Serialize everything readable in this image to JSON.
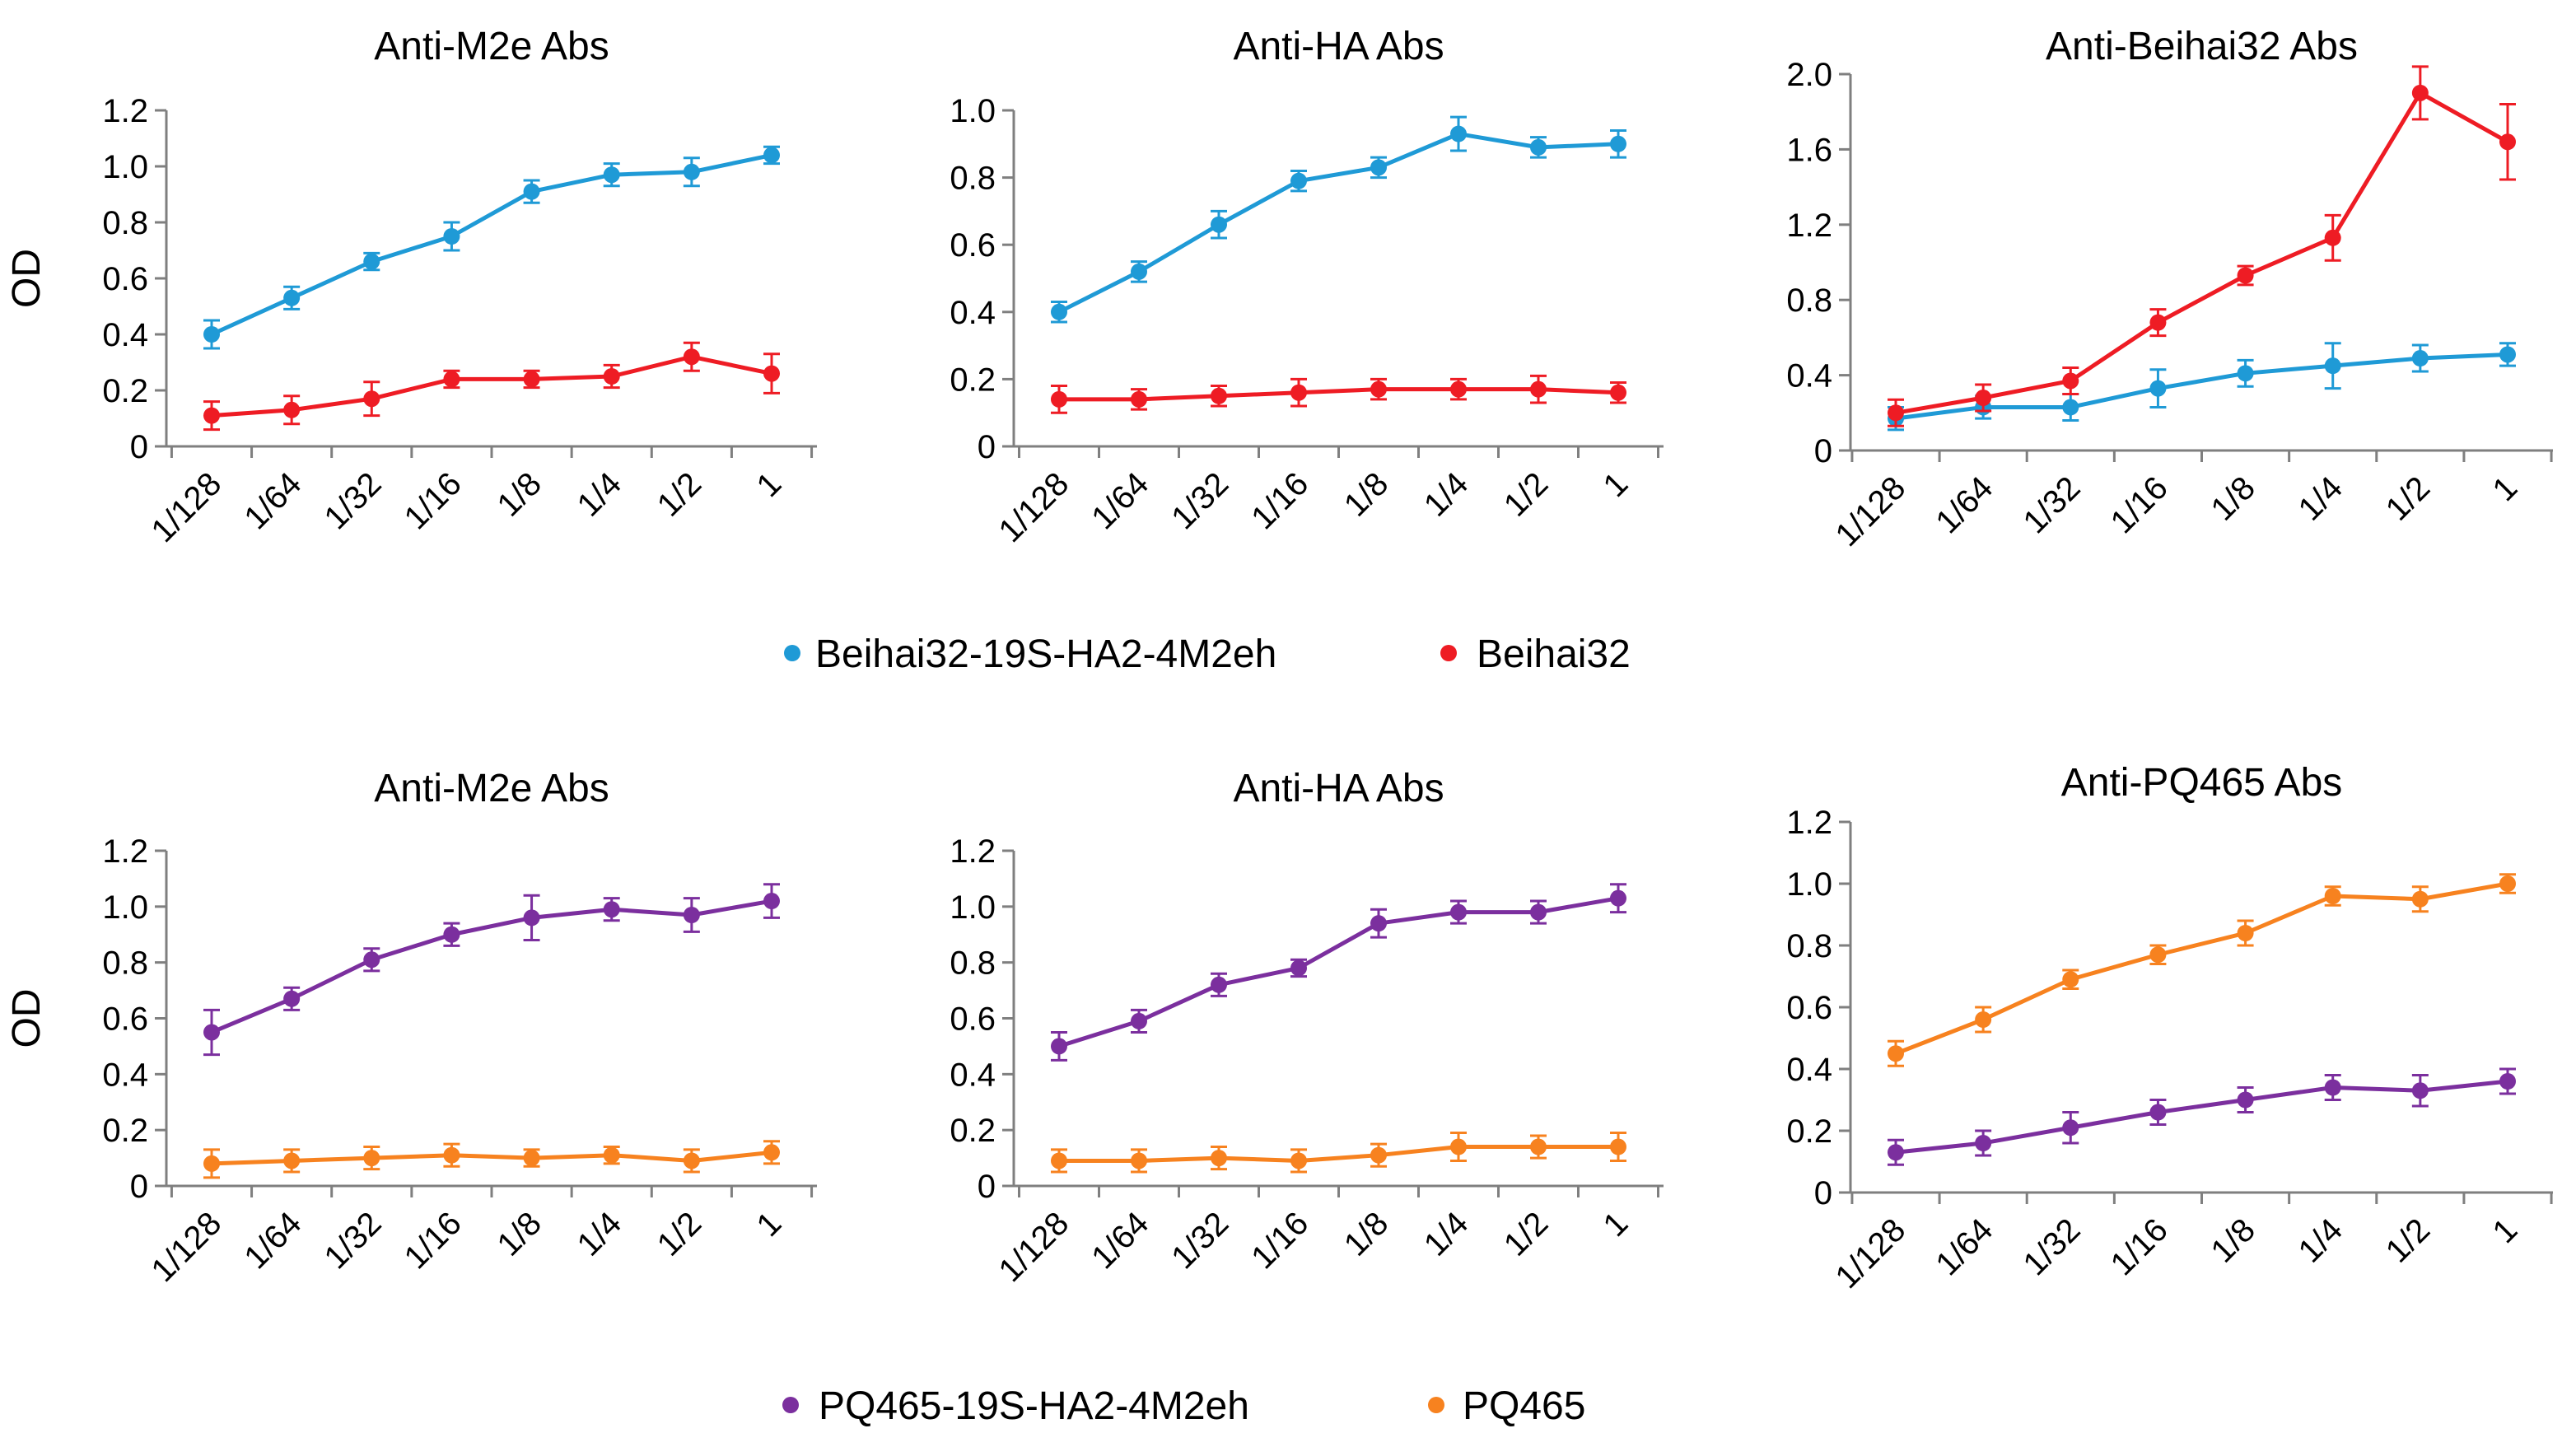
{
  "legends": [
    {
      "items": [
        {
          "name": "Beihai32-19S-HA2-4M2eh",
          "color": "#1f9ad6"
        },
        {
          "name": "Beihai32",
          "color": "#ee1c24"
        }
      ]
    },
    {
      "items": [
        {
          "name": "PQ465-19S-HA2-4M2eh",
          "color": "#7b2f9e"
        },
        {
          "name": "PQ465",
          "color": "#f7821f"
        }
      ]
    }
  ],
  "chart_data": [
    {
      "type": "line",
      "title": "Anti-M2e Abs",
      "xlabel": "",
      "ylabel": "OD",
      "categories": [
        "1/128",
        "1/64",
        "1/32",
        "1/16",
        "1/8",
        "1/4",
        "1/2",
        "1"
      ],
      "ylim": [
        0,
        1.2
      ],
      "yticks": [
        0,
        0.2,
        0.4,
        0.6,
        0.8,
        1.0,
        1.2
      ],
      "ytick_labels": [
        "0",
        "0.2",
        "0.4",
        "0.6",
        "0.8",
        "1.0",
        "1.2"
      ],
      "series": [
        {
          "name": "Beihai32-19S-HA2-4M2eh",
          "color": "#1f9ad6",
          "values": [
            0.4,
            0.53,
            0.66,
            0.75,
            0.91,
            0.97,
            0.98,
            1.04
          ],
          "errors": [
            0.05,
            0.04,
            0.03,
            0.05,
            0.04,
            0.04,
            0.05,
            0.03
          ]
        },
        {
          "name": "Beihai32",
          "color": "#ee1c24",
          "values": [
            0.11,
            0.13,
            0.17,
            0.24,
            0.24,
            0.25,
            0.32,
            0.26
          ],
          "errors": [
            0.05,
            0.05,
            0.06,
            0.03,
            0.03,
            0.04,
            0.05,
            0.07
          ]
        }
      ]
    },
    {
      "type": "line",
      "title": "Anti-HA Abs",
      "xlabel": "",
      "ylabel": "",
      "categories": [
        "1/128",
        "1/64",
        "1/32",
        "1/16",
        "1/8",
        "1/4",
        "1/2",
        "1"
      ],
      "ylim": [
        0,
        1.0
      ],
      "yticks": [
        0,
        0.2,
        0.4,
        0.6,
        0.8,
        1.0
      ],
      "ytick_labels": [
        "0",
        "0.2",
        "0.4",
        "0.6",
        "0.8",
        "1.0"
      ],
      "series": [
        {
          "name": "Beihai32-19S-HA2-4M2eh",
          "color": "#1f9ad6",
          "values": [
            0.4,
            0.52,
            0.66,
            0.79,
            0.83,
            0.93,
            0.89,
            0.9
          ],
          "errors": [
            0.03,
            0.03,
            0.04,
            0.03,
            0.03,
            0.05,
            0.03,
            0.04
          ]
        },
        {
          "name": "Beihai32",
          "color": "#ee1c24",
          "values": [
            0.14,
            0.14,
            0.15,
            0.16,
            0.17,
            0.17,
            0.17,
            0.16
          ],
          "errors": [
            0.04,
            0.03,
            0.03,
            0.04,
            0.03,
            0.03,
            0.04,
            0.03
          ]
        }
      ]
    },
    {
      "type": "line",
      "title": "Anti-Beihai32 Abs",
      "xlabel": "",
      "ylabel": "",
      "categories": [
        "1/128",
        "1/64",
        "1/32",
        "1/16",
        "1/8",
        "1/4",
        "1/2",
        "1"
      ],
      "ylim": [
        0,
        2.0
      ],
      "yticks": [
        0,
        0.4,
        0.8,
        1.2,
        1.6,
        2.0
      ],
      "ytick_labels": [
        "0",
        "0.4",
        "0.8",
        "1.2",
        "1.6",
        "2.0"
      ],
      "series": [
        {
          "name": "Beihai32-19S-HA2-4M2eh",
          "color": "#1f9ad6",
          "values": [
            0.17,
            0.23,
            0.23,
            0.33,
            0.41,
            0.45,
            0.49,
            0.51
          ],
          "errors": [
            0.06,
            0.06,
            0.07,
            0.1,
            0.07,
            0.12,
            0.07,
            0.06
          ]
        },
        {
          "name": "Beihai32",
          "color": "#ee1c24",
          "values": [
            0.2,
            0.28,
            0.37,
            0.68,
            0.93,
            1.13,
            1.9,
            1.64
          ],
          "errors": [
            0.07,
            0.07,
            0.07,
            0.07,
            0.05,
            0.12,
            0.14,
            0.2
          ]
        }
      ]
    },
    {
      "type": "line",
      "title": "Anti-M2e Abs",
      "xlabel": "",
      "ylabel": "OD",
      "categories": [
        "1/128",
        "1/64",
        "1/32",
        "1/16",
        "1/8",
        "1/4",
        "1/2",
        "1"
      ],
      "ylim": [
        0,
        1.2
      ],
      "yticks": [
        0,
        0.2,
        0.4,
        0.6,
        0.8,
        1.0,
        1.2
      ],
      "ytick_labels": [
        "0",
        "0.2",
        "0.4",
        "0.6",
        "0.8",
        "1.0",
        "1.2"
      ],
      "series": [
        {
          "name": "PQ465-19S-HA2-4M2eh",
          "color": "#7b2f9e",
          "values": [
            0.55,
            0.67,
            0.81,
            0.9,
            0.96,
            0.99,
            0.97,
            1.02
          ],
          "errors": [
            0.08,
            0.04,
            0.04,
            0.04,
            0.08,
            0.04,
            0.06,
            0.06
          ]
        },
        {
          "name": "PQ465",
          "color": "#f7821f",
          "values": [
            0.08,
            0.09,
            0.1,
            0.11,
            0.1,
            0.11,
            0.09,
            0.12
          ],
          "errors": [
            0.05,
            0.04,
            0.04,
            0.04,
            0.03,
            0.03,
            0.04,
            0.04
          ]
        }
      ]
    },
    {
      "type": "line",
      "title": "Anti-HA Abs",
      "xlabel": "",
      "ylabel": "",
      "categories": [
        "1/128",
        "1/64",
        "1/32",
        "1/16",
        "1/8",
        "1/4",
        "1/2",
        "1"
      ],
      "ylim": [
        0,
        1.2
      ],
      "yticks": [
        0,
        0.2,
        0.4,
        0.6,
        0.8,
        1.0,
        1.2
      ],
      "ytick_labels": [
        "0",
        "0.2",
        "0.4",
        "0.6",
        "0.8",
        "1.0",
        "1.2"
      ],
      "series": [
        {
          "name": "PQ465-19S-HA2-4M2eh",
          "color": "#7b2f9e",
          "values": [
            0.5,
            0.59,
            0.72,
            0.78,
            0.94,
            0.98,
            0.98,
            1.03
          ],
          "errors": [
            0.05,
            0.04,
            0.04,
            0.03,
            0.05,
            0.04,
            0.04,
            0.05
          ]
        },
        {
          "name": "PQ465",
          "color": "#f7821f",
          "values": [
            0.09,
            0.09,
            0.1,
            0.09,
            0.11,
            0.14,
            0.14,
            0.14
          ],
          "errors": [
            0.04,
            0.04,
            0.04,
            0.04,
            0.04,
            0.05,
            0.04,
            0.05
          ]
        }
      ]
    },
    {
      "type": "line",
      "title": "Anti-PQ465 Abs",
      "xlabel": "",
      "ylabel": "",
      "categories": [
        "1/128",
        "1/64",
        "1/32",
        "1/16",
        "1/8",
        "1/4",
        "1/2",
        "1"
      ],
      "ylim": [
        0,
        1.2
      ],
      "yticks": [
        0,
        0.2,
        0.4,
        0.6,
        0.8,
        1.0,
        1.2
      ],
      "ytick_labels": [
        "0",
        "0.2",
        "0.4",
        "0.6",
        "0.8",
        "1.0",
        "1.2"
      ],
      "series": [
        {
          "name": "PQ465-19S-HA2-4M2eh",
          "color": "#7b2f9e",
          "values": [
            0.13,
            0.16,
            0.21,
            0.26,
            0.3,
            0.34,
            0.33,
            0.36
          ],
          "errors": [
            0.04,
            0.04,
            0.05,
            0.04,
            0.04,
            0.04,
            0.05,
            0.04
          ]
        },
        {
          "name": "PQ465",
          "color": "#f7821f",
          "values": [
            0.45,
            0.56,
            0.69,
            0.77,
            0.84,
            0.96,
            0.95,
            1.0
          ],
          "errors": [
            0.04,
            0.04,
            0.03,
            0.03,
            0.04,
            0.03,
            0.04,
            0.03
          ]
        }
      ]
    }
  ]
}
